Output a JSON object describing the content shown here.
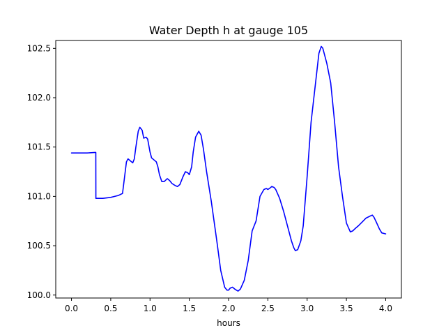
{
  "chart_data": {
    "type": "line",
    "title": "Water Depth h at gauge 105",
    "xlabel": "hours",
    "ylabel": "",
    "xlim": [
      -0.2,
      4.2
    ],
    "ylim": [
      99.97,
      102.58
    ],
    "xticks": [
      0.0,
      0.5,
      1.0,
      1.5,
      2.0,
      2.5,
      3.0,
      3.5,
      4.0
    ],
    "xtick_labels": [
      "0.0",
      "0.5",
      "1.0",
      "1.5",
      "2.0",
      "2.5",
      "3.0",
      "3.5",
      "4.0"
    ],
    "yticks": [
      100.0,
      100.5,
      101.0,
      101.5,
      102.0,
      102.5
    ],
    "ytick_labels": [
      "100.0",
      "100.5",
      "101.0",
      "101.5",
      "102.0",
      "102.5"
    ],
    "grid": false,
    "legend": "none",
    "series": [
      {
        "color": "#0000ff",
        "x": [
          0.0,
          0.1,
          0.2,
          0.3,
          0.31,
          0.311,
          0.35,
          0.4,
          0.5,
          0.55,
          0.6,
          0.65,
          0.7,
          0.72,
          0.75,
          0.78,
          0.8,
          0.82,
          0.85,
          0.87,
          0.9,
          0.92,
          0.95,
          0.97,
          1.0,
          1.02,
          1.05,
          1.08,
          1.1,
          1.12,
          1.15,
          1.18,
          1.22,
          1.25,
          1.28,
          1.32,
          1.35,
          1.38,
          1.42,
          1.45,
          1.48,
          1.5,
          1.53,
          1.55,
          1.58,
          1.62,
          1.65,
          1.68,
          1.72,
          1.78,
          1.85,
          1.9,
          1.95,
          1.98,
          2.0,
          2.02,
          2.05,
          2.08,
          2.12,
          2.15,
          2.2,
          2.25,
          2.3,
          2.35,
          2.4,
          2.45,
          2.48,
          2.5,
          2.52,
          2.55,
          2.58,
          2.6,
          2.65,
          2.7,
          2.75,
          2.8,
          2.83,
          2.85,
          2.88,
          2.92,
          2.95,
          3.0,
          3.05,
          3.1,
          3.15,
          3.18,
          3.2,
          3.22,
          3.25,
          3.3,
          3.35,
          3.4,
          3.45,
          3.5,
          3.55,
          3.58,
          3.62,
          3.65,
          3.7,
          3.75,
          3.8,
          3.83,
          3.85,
          3.88,
          3.92,
          3.95,
          4.0
        ],
        "y": [
          101.44,
          101.44,
          101.44,
          101.445,
          101.445,
          100.98,
          100.98,
          100.98,
          100.99,
          101.0,
          101.01,
          101.03,
          101.35,
          101.38,
          101.36,
          101.34,
          101.38,
          101.5,
          101.66,
          101.7,
          101.67,
          101.59,
          101.6,
          101.58,
          101.45,
          101.39,
          101.37,
          101.35,
          101.3,
          101.22,
          101.15,
          101.15,
          101.18,
          101.16,
          101.13,
          101.11,
          101.1,
          101.12,
          101.2,
          101.25,
          101.24,
          101.22,
          101.3,
          101.45,
          101.6,
          101.66,
          101.62,
          101.48,
          101.25,
          100.95,
          100.55,
          100.25,
          100.08,
          100.05,
          100.05,
          100.07,
          100.08,
          100.06,
          100.04,
          100.06,
          100.15,
          100.35,
          100.65,
          100.75,
          101.0,
          101.07,
          101.08,
          101.07,
          101.08,
          101.1,
          101.09,
          101.07,
          100.98,
          100.85,
          100.7,
          100.55,
          100.48,
          100.45,
          100.46,
          100.55,
          100.7,
          101.2,
          101.75,
          102.1,
          102.45,
          102.52,
          102.5,
          102.44,
          102.35,
          102.15,
          101.75,
          101.3,
          101.0,
          100.73,
          100.64,
          100.65,
          100.68,
          100.7,
          100.74,
          100.78,
          100.8,
          100.81,
          100.79,
          100.74,
          100.67,
          100.63,
          100.62
        ]
      }
    ]
  }
}
